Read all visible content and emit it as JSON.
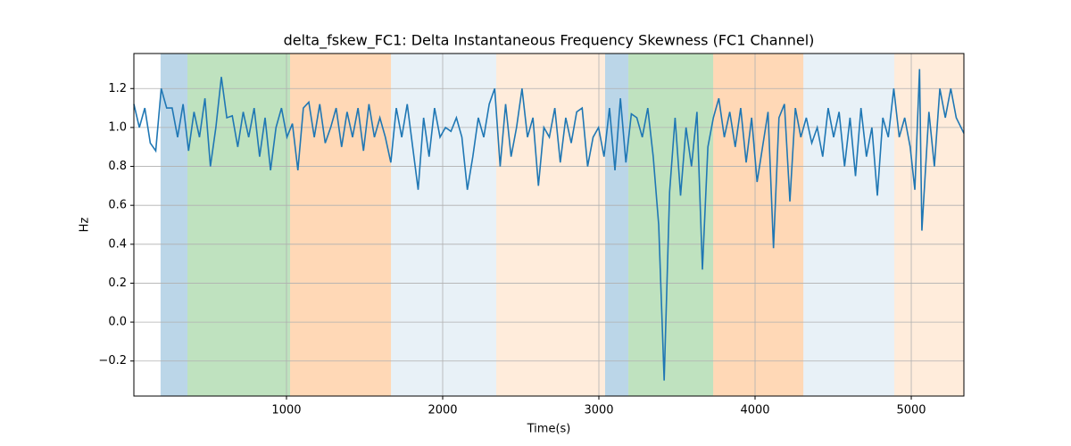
{
  "chart_data": {
    "type": "line",
    "title": "delta_fskew_FC1: Delta Instantaneous Frequency Skewness (FC1 Channel)",
    "xlabel": "Time(s)",
    "ylabel": "Hz",
    "xlim": [
      23,
      5337
    ],
    "ylim": [
      -0.38,
      1.38
    ],
    "xticks": [
      1000,
      2000,
      3000,
      4000,
      5000
    ],
    "yticks": [
      {
        "value": -0.2,
        "label": "−0.2"
      },
      {
        "value": 0,
        "label": "0.0"
      },
      0.2,
      0.4,
      0.6,
      0.8,
      {
        "value": 1,
        "label": "1.0"
      },
      1.2
    ],
    "grid": true,
    "spans": [
      {
        "start": 194,
        "end": 366,
        "color": "#1f77b4",
        "opacity": 0.3
      },
      {
        "start": 366,
        "end": 1023,
        "color": "#2ca02c",
        "opacity": 0.3
      },
      {
        "start": 1023,
        "end": 1669,
        "color": "#ff7f0e",
        "opacity": 0.3
      },
      {
        "start": 1669,
        "end": 2343,
        "color": "#1f77b4",
        "opacity": 0.1
      },
      {
        "start": 2343,
        "end": 3040,
        "color": "#ff7f0e",
        "opacity": 0.15
      },
      {
        "start": 3040,
        "end": 3189,
        "color": "#1f77b4",
        "opacity": 0.3
      },
      {
        "start": 3189,
        "end": 3732,
        "color": "#2ca02c",
        "opacity": 0.3
      },
      {
        "start": 3732,
        "end": 4309,
        "color": "#ff7f0e",
        "opacity": 0.3
      },
      {
        "start": 4309,
        "end": 4891,
        "color": "#1f77b4",
        "opacity": 0.1
      },
      {
        "start": 4891,
        "end": 5337,
        "color": "#ff7f0e",
        "opacity": 0.15
      }
    ],
    "series": [
      {
        "color": "#1f77b4",
        "x": [
          23,
          58,
          93,
          128,
          163,
          198,
          233,
          268,
          303,
          338,
          373,
          408,
          443,
          478,
          513,
          548,
          583,
          618,
          653,
          688,
          723,
          758,
          793,
          828,
          863,
          898,
          933,
          968,
          1003,
          1038,
          1073,
          1108,
          1143,
          1178,
          1213,
          1248,
          1283,
          1318,
          1353,
          1388,
          1423,
          1458,
          1493,
          1528,
          1563,
          1598,
          1633,
          1668,
          1703,
          1738,
          1773,
          1808,
          1843,
          1878,
          1913,
          1948,
          1983,
          2018,
          2053,
          2088,
          2123,
          2158,
          2193,
          2228,
          2263,
          2298,
          2333,
          2368,
          2403,
          2438,
          2473,
          2508,
          2543,
          2578,
          2613,
          2648,
          2683,
          2718,
          2753,
          2788,
          2823,
          2858,
          2893,
          2928,
          2963,
          2998,
          3033,
          3068,
          3103,
          3138,
          3173,
          3208,
          3243,
          3278,
          3313,
          3348,
          3383,
          3418,
          3453,
          3488,
          3523,
          3558,
          3593,
          3628,
          3663,
          3698,
          3733,
          3768,
          3803,
          3838,
          3873,
          3908,
          3943,
          3978,
          4013,
          4048,
          4083,
          4118,
          4153,
          4188,
          4223,
          4258,
          4293,
          4328,
          4363,
          4398,
          4433,
          4468,
          4503,
          4538,
          4573,
          4608,
          4643,
          4678,
          4713,
          4748,
          4783,
          4818,
          4853,
          4888,
          4923,
          4958,
          4993,
          5023,
          5053,
          5068,
          5113,
          5148,
          5183,
          5218,
          5253,
          5288,
          5337
        ],
        "values": [
          1.12,
          1.0,
          1.1,
          0.92,
          0.88,
          1.2,
          1.1,
          1.1,
          0.95,
          1.12,
          0.88,
          1.08,
          0.95,
          1.15,
          0.8,
          1.0,
          1.26,
          1.05,
          1.06,
          0.9,
          1.08,
          0.95,
          1.1,
          0.85,
          1.05,
          0.78,
          1.0,
          1.1,
          0.95,
          1.02,
          0.78,
          1.1,
          1.13,
          0.95,
          1.12,
          0.92,
          1.0,
          1.1,
          0.9,
          1.08,
          0.95,
          1.1,
          0.88,
          1.12,
          0.95,
          1.05,
          0.95,
          0.82,
          1.1,
          0.95,
          1.12,
          0.9,
          0.68,
          1.05,
          0.85,
          1.1,
          0.95,
          1.0,
          0.98,
          1.05,
          0.95,
          0.68,
          0.85,
          1.05,
          0.95,
          1.12,
          1.2,
          0.8,
          1.12,
          0.85,
          1.0,
          1.2,
          0.95,
          1.05,
          0.7,
          1.0,
          0.95,
          1.1,
          0.82,
          1.05,
          0.92,
          1.08,
          1.1,
          0.8,
          0.95,
          1.0,
          0.85,
          1.1,
          0.78,
          1.15,
          0.82,
          1.07,
          1.05,
          0.95,
          1.1,
          0.85,
          0.5,
          -0.3,
          0.67,
          1.05,
          0.65,
          1.0,
          0.8,
          1.08,
          0.27,
          0.9,
          1.05,
          1.15,
          0.95,
          1.08,
          0.9,
          1.1,
          0.82,
          1.05,
          0.72,
          0.9,
          1.08,
          0.38,
          1.05,
          1.12,
          0.62,
          1.1,
          0.95,
          1.05,
          0.92,
          1.0,
          0.85,
          1.1,
          0.95,
          1.08,
          0.8,
          1.05,
          0.75,
          1.1,
          0.85,
          1.0,
          0.65,
          1.05,
          0.95,
          1.2,
          0.95,
          1.05,
          0.9,
          0.68,
          1.3,
          0.47,
          1.08,
          0.8,
          1.2,
          1.05,
          1.2,
          1.05,
          0.97
        ]
      }
    ]
  }
}
